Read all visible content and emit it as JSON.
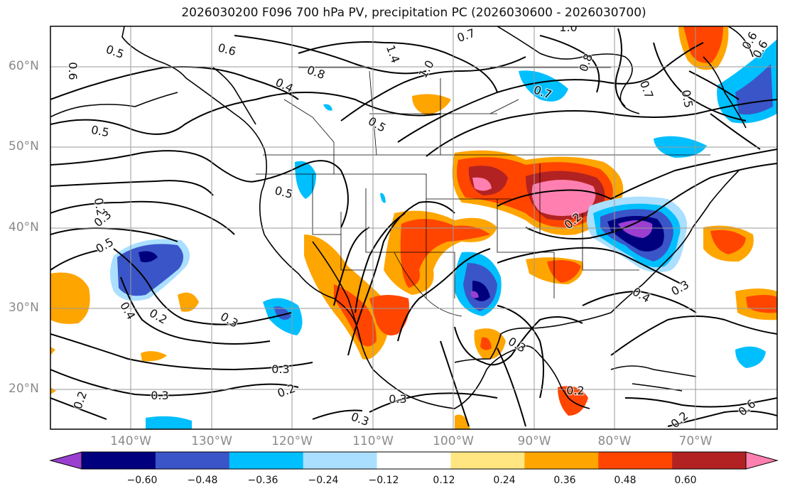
{
  "title": "2026030200 F096 700 hPa PV, precipitation PC (2026030600 - 2026030700)",
  "map": {
    "lat_labels": [
      "60°N",
      "50°N",
      "40°N",
      "30°N",
      "20°N"
    ],
    "lon_labels": [
      "140°W",
      "130°W",
      "120°W",
      "110°W",
      "100°W",
      "90°W",
      "80°W",
      "70°W"
    ],
    "contour_labels": [
      "0.5",
      "0.6",
      "0.8",
      "0.4",
      "1.4",
      "0.7",
      "1.0",
      "0.8",
      "0.6",
      "0.7",
      "0.7",
      "0.5",
      "0.6",
      "0.5",
      "0.5",
      "0.5",
      "0.2",
      "0.3",
      "0.5",
      "0.4",
      "0.2",
      "0.3",
      "0.6",
      "0.3",
      "0.2",
      "0.3",
      "0.3",
      "0.2",
      "0.3",
      "0.4",
      "0.3",
      "0.2",
      "0.3",
      "0.2",
      "0.6",
      "0.2",
      "1.0"
    ]
  },
  "colorbar": {
    "tick_labels": [
      "−0.60",
      "−0.48",
      "−0.36",
      "−0.24",
      "−0.12",
      "0.12",
      "0.24",
      "0.36",
      "0.48",
      "0.60"
    ],
    "colors": [
      "#9a3fd0",
      "#00007f",
      "#3a55c8",
      "#00bfff",
      "#aadfff",
      "#ffffff",
      "#ffe680",
      "#ffa500",
      "#ff4500",
      "#b22222",
      "#ff80b0"
    ]
  },
  "palette": {
    "purple": "#9a3fd0",
    "navy": "#00007f",
    "royal": "#3a55c8",
    "cyan": "#00bfff",
    "lightblue": "#aadfff",
    "yellow": "#ffe680",
    "orange": "#ffa500",
    "redorange": "#ff4500",
    "darkred": "#b22222",
    "pink": "#ff80b0"
  }
}
